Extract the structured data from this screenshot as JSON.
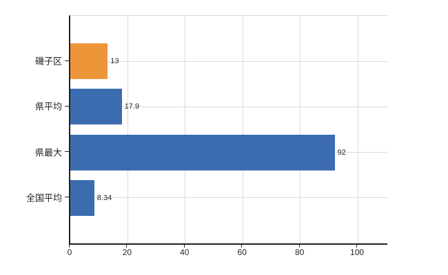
{
  "chart_data": {
    "type": "bar",
    "orientation": "horizontal",
    "title": "",
    "xlabel": "",
    "ylabel": "",
    "categories": [
      "磯子区",
      "県平均",
      "県最大",
      "全国平均"
    ],
    "values": [
      13,
      17.9,
      92,
      8.34
    ],
    "value_labels": [
      "13",
      "17.9",
      "92",
      "8.34"
    ],
    "bar_colors": [
      "#ED9539",
      "#3C6CB0",
      "#3C6CB0",
      "#3C6CB0"
    ],
    "xlim": [
      0,
      110.3
    ],
    "xticks": [
      0,
      20,
      40,
      60,
      80,
      100
    ],
    "xtick_labels": [
      "0",
      "20",
      "40",
      "60",
      "80",
      "100"
    ],
    "grid": true,
    "legend": false
  },
  "colors": {
    "background": "#ffffff",
    "grid": "#d9d9d9",
    "axis": "#1f1f1f",
    "text": "#262626",
    "highlight_bar": "#ED9539",
    "default_bar": "#3C6CB0"
  }
}
